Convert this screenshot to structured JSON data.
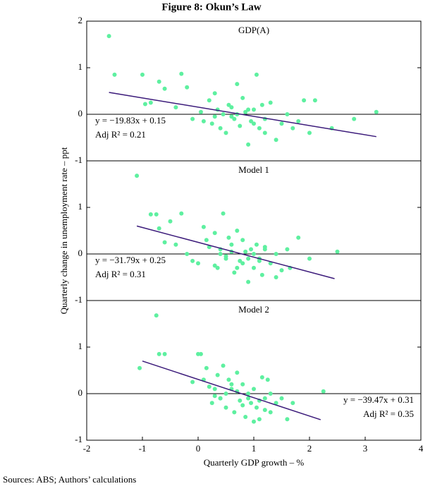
{
  "title": "Figure 8: Okun’s Law",
  "y_label": "Quarterly change in unemployment rate – ppt",
  "x_label": "Quarterly GDP growth – %",
  "source": "Sources:  ABS; Authors’ calculations",
  "chart_data": [
    {
      "type": "scatter",
      "title": "GDP(A)",
      "xlim": [
        -2,
        4
      ],
      "ylim": [
        -1,
        2
      ],
      "yticks": [
        -1,
        0,
        1,
        2
      ],
      "zero_line": true,
      "annotation_corner": "lower left",
      "annotations": [
        "y = −19.83x + 0.15",
        "Adj R² = 0.21"
      ],
      "series": [
        {
          "color": "#5ef0a0",
          "x": [
            -1.6,
            -1.5,
            -1.0,
            -0.95,
            -0.85,
            -0.7,
            -0.6,
            -0.4,
            -0.3,
            -0.2,
            -0.1,
            0.05,
            0.1,
            0.2,
            0.25,
            0.3,
            0.35,
            0.4,
            0.45,
            0.5,
            0.55,
            0.6,
            0.65,
            0.7,
            0.75,
            0.8,
            0.85,
            0.9,
            0.95,
            1.0,
            1.05,
            1.1,
            1.15,
            1.2,
            1.3,
            1.4,
            1.5,
            1.6,
            1.7,
            1.8,
            1.9,
            2.0,
            2.1,
            2.4,
            2.8,
            3.2,
            0.6,
            0.9,
            1.2,
            0.3,
            1.0,
            0.7
          ],
          "values": [
            1.68,
            0.85,
            0.85,
            0.22,
            0.25,
            0.7,
            0.55,
            0.15,
            0.87,
            0.58,
            -0.1,
            0.05,
            -0.15,
            0.3,
            -0.2,
            0.45,
            0.1,
            -0.3,
            0.0,
            -0.4,
            0.2,
            0.15,
            -0.1,
            0.65,
            -0.25,
            0.35,
            0.05,
            -0.65,
            -0.15,
            0.1,
            0.85,
            -0.3,
            0.2,
            -0.1,
            0.25,
            -0.55,
            -0.2,
            0.0,
            -0.3,
            -0.15,
            0.3,
            -0.4,
            0.3,
            -0.3,
            -0.1,
            0.05,
            -0.05,
            0.1,
            -0.4,
            -0.05,
            -0.2,
            0.0
          ]
        }
      ],
      "fit": {
        "color": "#3b1a7a",
        "x": [
          -1.6,
          3.2
        ],
        "values": [
          0.47,
          -0.48
        ]
      }
    },
    {
      "type": "scatter",
      "title": "Model 1",
      "xlim": [
        -2,
        4
      ],
      "ylim": [
        -1,
        2
      ],
      "yticks": [
        -1,
        0,
        1
      ],
      "zero_line": true,
      "annotation_corner": "lower left",
      "annotations": [
        "y = −31.79x + 0.25",
        "Adj R² = 0.31"
      ],
      "series": [
        {
          "color": "#5ef0a0",
          "x": [
            -1.1,
            -0.85,
            -0.75,
            -0.7,
            -0.6,
            -0.5,
            -0.4,
            -0.3,
            -0.2,
            -0.1,
            0.0,
            0.1,
            0.15,
            0.2,
            0.3,
            0.35,
            0.4,
            0.45,
            0.5,
            0.55,
            0.6,
            0.65,
            0.7,
            0.75,
            0.8,
            0.85,
            0.9,
            0.95,
            1.0,
            1.05,
            1.1,
            1.15,
            1.2,
            1.3,
            1.4,
            1.5,
            1.6,
            1.65,
            1.8,
            2.0,
            2.5,
            0.5,
            0.8,
            1.0,
            0.3,
            1.2,
            0.6,
            0.9,
            1.4,
            0.7,
            1.1,
            0.4
          ],
          "values": [
            1.68,
            0.85,
            0.85,
            0.55,
            0.25,
            0.7,
            0.2,
            0.87,
            0.0,
            -0.15,
            -0.2,
            0.58,
            0.3,
            0.15,
            0.45,
            -0.3,
            0.1,
            0.87,
            -0.1,
            0.35,
            0.2,
            -0.4,
            0.5,
            -0.15,
            0.3,
            0.05,
            -0.6,
            0.1,
            -0.3,
            0.2,
            -0.1,
            -0.45,
            0.1,
            -0.2,
            0.0,
            -0.35,
            0.1,
            -0.3,
            0.35,
            -0.1,
            0.05,
            -0.05,
            -0.2,
            0.0,
            -0.25,
            0.15,
            0.05,
            -0.1,
            -0.5,
            -0.3,
            -0.15,
            0.0
          ]
        }
      ],
      "fit": {
        "color": "#3b1a7a",
        "x": [
          -1.1,
          2.45
        ],
        "values": [
          0.6,
          -0.53
        ]
      }
    },
    {
      "type": "scatter",
      "title": "Model 2",
      "xlim": [
        -2,
        4
      ],
      "ylim": [
        -1,
        2
      ],
      "yticks": [
        -1,
        0,
        1
      ],
      "xticks": [
        -2,
        -1,
        0,
        1,
        2,
        3,
        4
      ],
      "zero_line": true,
      "annotation_corner": "lower right",
      "annotations": [
        "y = −39.47x + 0.31",
        "Adj R² = 0.35"
      ],
      "series": [
        {
          "color": "#5ef0a0",
          "x": [
            -1.05,
            -0.75,
            -0.7,
            -0.6,
            -0.1,
            0.0,
            0.05,
            0.1,
            0.15,
            0.2,
            0.25,
            0.3,
            0.35,
            0.4,
            0.45,
            0.5,
            0.55,
            0.6,
            0.65,
            0.7,
            0.75,
            0.8,
            0.85,
            0.9,
            0.95,
            1.0,
            1.05,
            1.1,
            1.15,
            1.2,
            1.25,
            1.3,
            1.4,
            1.5,
            1.6,
            1.7,
            2.25,
            0.5,
            0.8,
            1.0,
            0.3,
            1.2,
            0.6,
            0.9,
            0.7,
            1.1,
            0.4,
            1.3
          ],
          "values": [
            0.55,
            1.68,
            0.85,
            0.85,
            0.25,
            0.85,
            0.85,
            0.3,
            0.55,
            0.15,
            -0.2,
            0.1,
            0.4,
            -0.1,
            0.6,
            -0.3,
            0.3,
            0.1,
            -0.4,
            0.45,
            -0.15,
            0.2,
            -0.5,
            0.0,
            -0.2,
            0.1,
            -0.3,
            -0.55,
            0.35,
            -0.1,
            0.3,
            -0.4,
            -0.2,
            -0.1,
            -0.55,
            -0.2,
            0.05,
            0.0,
            -0.25,
            -0.6,
            -0.05,
            -0.35,
            0.2,
            -0.1,
            0.05,
            -0.15,
            -0.1,
            0.0
          ]
        }
      ],
      "fit": {
        "color": "#3b1a7a",
        "x": [
          -1.0,
          2.2
        ],
        "values": [
          0.7,
          -0.56
        ]
      }
    }
  ]
}
